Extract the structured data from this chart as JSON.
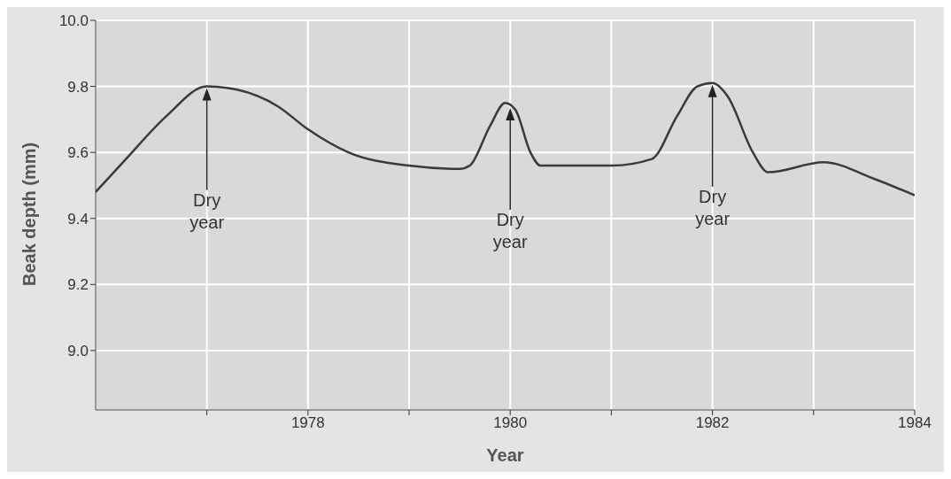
{
  "chart_data": {
    "type": "line",
    "xlabel": "Year",
    "ylabel": "Beak depth (mm)",
    "color": "#3a3a3a",
    "grid": true,
    "marker": "none",
    "line_style": "solid",
    "x": [
      1975.9,
      1976.2,
      1976.6,
      1977,
      1977.3,
      1977.7,
      1978,
      1978.4,
      1979,
      1979.5,
      1979.6,
      1979.8,
      1979.95,
      1980.05,
      1980.2,
      1980.3,
      1981,
      1981.4,
      1981.65,
      1981.85,
      1982,
      1982.15,
      1982.4,
      1982.55,
      1983.1,
      1983.6,
      1984
    ],
    "values": [
      9.48,
      9.58,
      9.71,
      9.8,
      9.79,
      9.74,
      9.67,
      9.6,
      9.56,
      9.55,
      9.56,
      9.68,
      9.75,
      9.73,
      9.6,
      9.56,
      9.56,
      9.58,
      9.71,
      9.8,
      9.81,
      9.77,
      9.6,
      9.54,
      9.57,
      9.52,
      9.47
    ],
    "xlim": [
      1975.9,
      1984
    ],
    "xticks": [
      {
        "value": 1977,
        "label": null
      },
      1978,
      {
        "value": 1979,
        "label": null
      },
      1980,
      {
        "value": 1981,
        "label": null
      },
      1982,
      {
        "value": 1983,
        "label": null
      },
      1984
    ],
    "ylim": [
      8.82,
      10
    ],
    "yticks": [
      {
        "value": 9,
        "label": "9.0"
      },
      9.2,
      9.4,
      9.6,
      9.8,
      {
        "value": 10,
        "label": "10.0"
      }
    ],
    "annotations": [
      {
        "text": "Dry year",
        "x": 1977,
        "y": 9.8
      },
      {
        "text": "Dry year",
        "x": 1980,
        "y": 9.74
      },
      {
        "text": "Dry year",
        "x": 1982,
        "y": 9.81
      }
    ]
  }
}
